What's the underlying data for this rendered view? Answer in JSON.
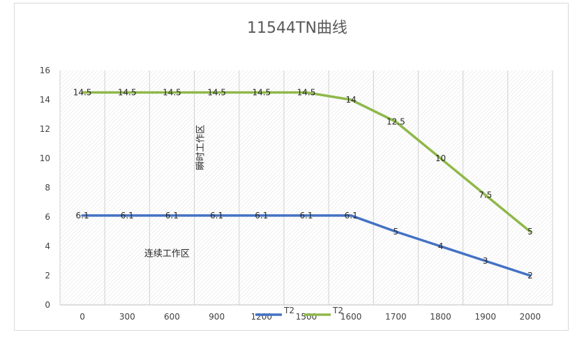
{
  "chart_data": {
    "type": "line",
    "title": "11544TN曲线",
    "x": [
      "0",
      "300",
      "600",
      "900",
      "1200",
      "1500",
      "1600",
      "1700",
      "1800",
      "1900",
      "2000"
    ],
    "ylim": [
      0,
      16
    ],
    "yticks": [
      0,
      2,
      4,
      6,
      8,
      10,
      12,
      14,
      16
    ],
    "grid": "hatched-vertical",
    "legend_position": "bottom",
    "series": [
      {
        "name": "T2",
        "color": "#4472c4",
        "values": [
          6.1,
          6.1,
          6.1,
          6.1,
          6.1,
          6.1,
          6.1,
          5,
          4,
          3,
          2
        ],
        "labels": [
          "6.1",
          "6.1",
          "6.1",
          "6.1",
          "6.1",
          "6.1",
          "6.1",
          "5",
          "4",
          "3",
          "2"
        ]
      },
      {
        "name": "T2",
        "color": "#8fb84a",
        "values": [
          14.5,
          14.5,
          14.5,
          14.5,
          14.5,
          14.5,
          14,
          12.5,
          10,
          7.5,
          5
        ],
        "labels": [
          "14.5",
          "14.5",
          "14.5",
          "14.5",
          "14.5",
          "14.5",
          "14",
          "12.5",
          "10",
          "7.5",
          "5"
        ]
      }
    ],
    "annotations": [
      {
        "text": "瞬时工作区",
        "orientation": "vertical"
      },
      {
        "text": "连续工作区",
        "orientation": "horizontal"
      }
    ]
  }
}
